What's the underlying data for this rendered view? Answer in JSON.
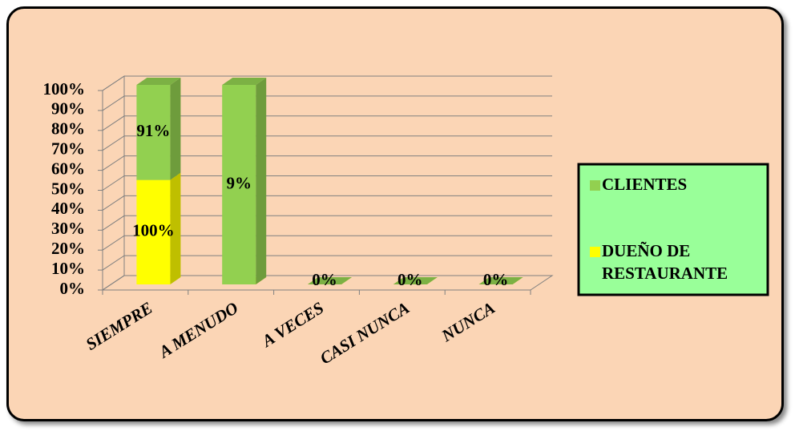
{
  "chart_data": {
    "type": "bar",
    "stacking": "percent",
    "categories": [
      "SIEMPRE",
      "A MENUDO",
      "A VECES",
      "CASI NUNCA",
      "NUNCA"
    ],
    "series": [
      {
        "name": "DUEÑO DE RESTAURANTE",
        "color": "#ffff00",
        "values": [
          100,
          0,
          0,
          0,
          0
        ],
        "value_labels": [
          "100%",
          null,
          null,
          null,
          null
        ]
      },
      {
        "name": "CLIENTES",
        "color": "#92d050",
        "values": [
          91,
          9,
          0,
          0,
          0
        ],
        "value_labels": [
          "91%",
          "9%",
          "0%",
          "0%",
          "0%"
        ]
      }
    ],
    "ylim": [
      0,
      100
    ],
    "yticks": [
      {
        "value": 0,
        "label": "0%"
      },
      {
        "value": 10,
        "label": "10%"
      },
      {
        "value": 20,
        "label": "20%"
      },
      {
        "value": 30,
        "label": "30%"
      },
      {
        "value": 40,
        "label": "40%"
      },
      {
        "value": 50,
        "label": "50%"
      },
      {
        "value": 60,
        "label": "60%"
      },
      {
        "value": 70,
        "label": "70%"
      },
      {
        "value": 80,
        "label": "80%"
      },
      {
        "value": 90,
        "label": "90%"
      },
      {
        "value": 100,
        "label": "100%"
      }
    ],
    "grid": true,
    "legend": "right"
  }
}
